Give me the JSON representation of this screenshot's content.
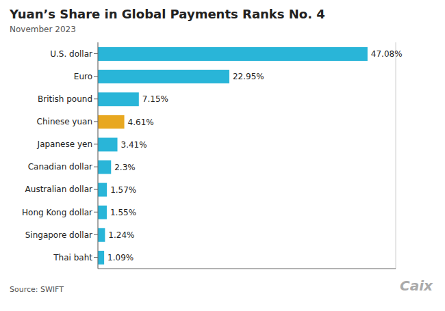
{
  "chart_data": {
    "type": "bar",
    "orientation": "horizontal",
    "title": "Yuan’s Share in Global Payments Ranks No. 4",
    "subtitle": "November 2023",
    "annotations": [
      "Source: SWIFT",
      "Caix"
    ],
    "categories": [
      "U.S. dollar",
      "Euro",
      "British pound",
      "Chinese yuan",
      "Japanese yen",
      "Canadian dollar",
      "Australian dollar",
      "Hong Kong dollar",
      "Singapore dollar",
      "Thai baht"
    ],
    "values": [
      47.08,
      22.95,
      7.15,
      4.61,
      3.41,
      2.3,
      1.57,
      1.55,
      1.24,
      1.09
    ],
    "value_labels": [
      "47.08%",
      "22.95%",
      "7.15%",
      "4.61%",
      "3.41%",
      "2.3%",
      "1.57%",
      "1.55%",
      "1.24%",
      "1.09%"
    ],
    "colors": [
      "#29b5d8",
      "#29b5d8",
      "#29b5d8",
      "#e8a820",
      "#29b5d8",
      "#29b5d8",
      "#29b5d8",
      "#29b5d8",
      "#29b5d8",
      "#29b5d8"
    ],
    "xlim": [
      0,
      52
    ],
    "xticks": [
      0,
      10,
      20,
      30,
      40,
      50
    ],
    "grid": true,
    "data_labels": true,
    "tick_labels": "y"
  }
}
